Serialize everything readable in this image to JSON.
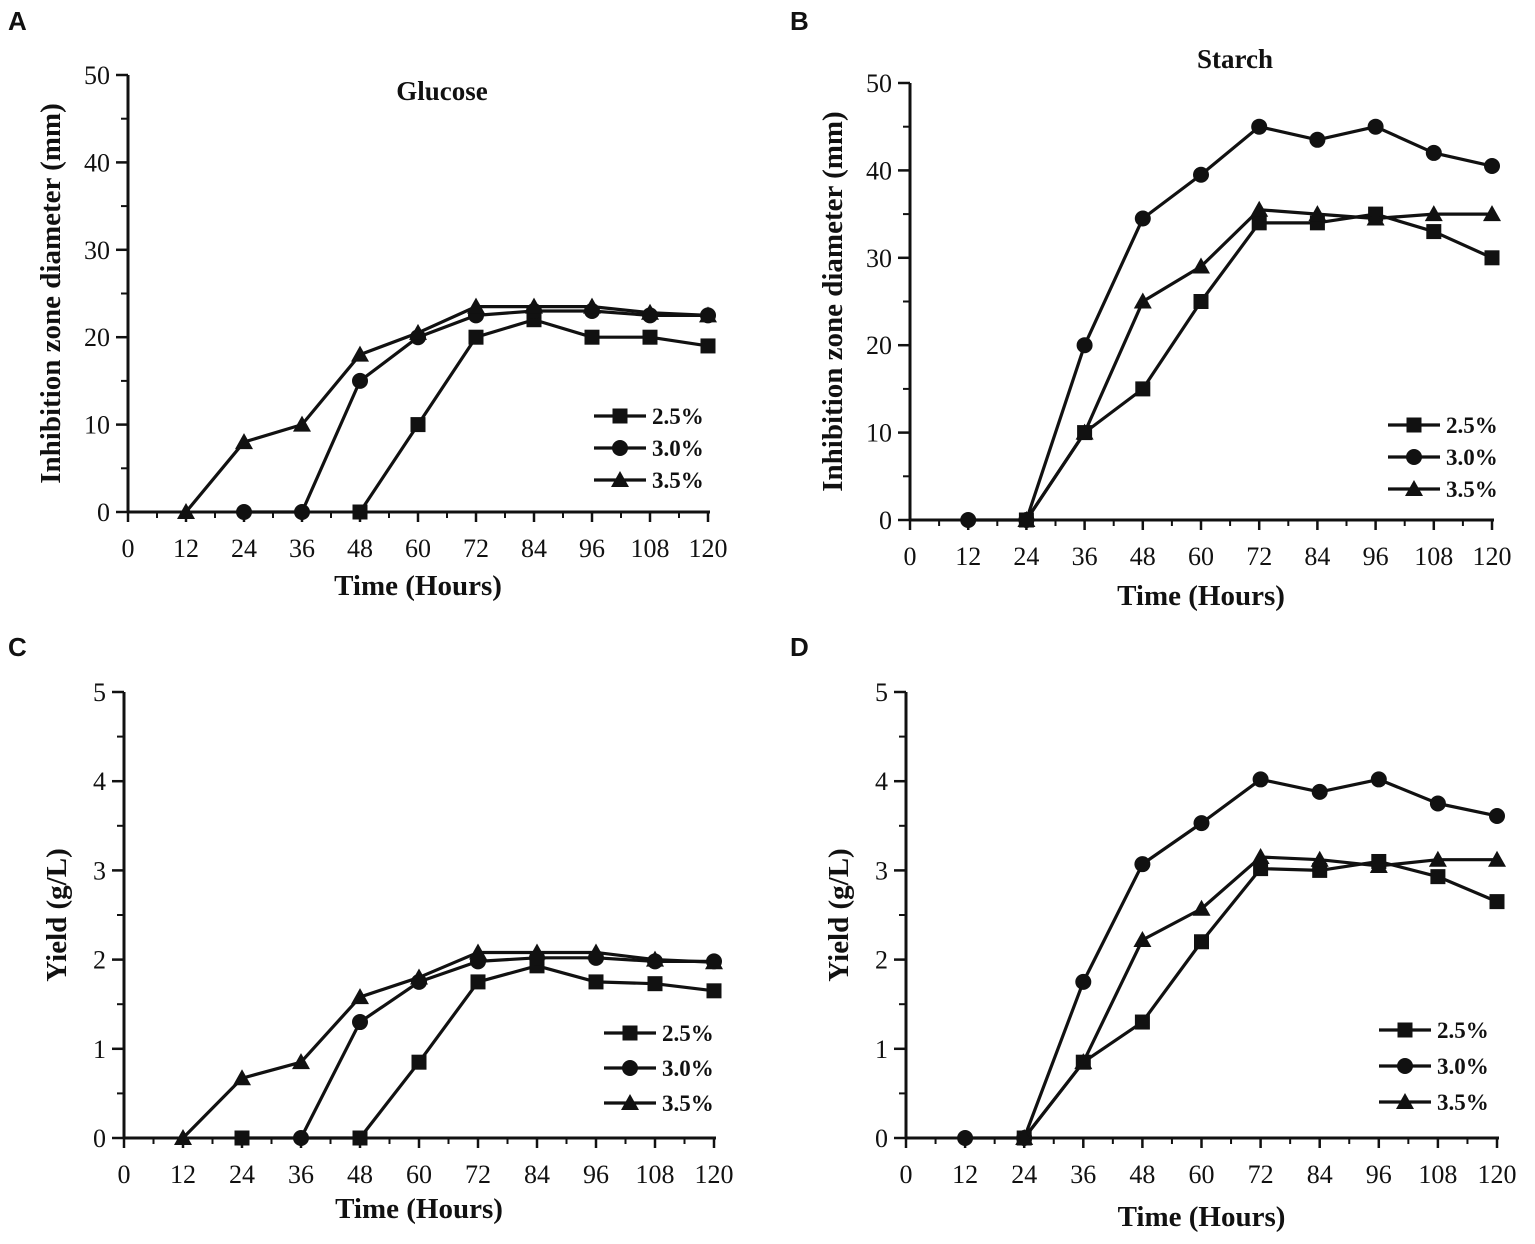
{
  "colors": {
    "ink": "#111111",
    "background": "#ffffff"
  },
  "chart_data": [
    {
      "panel": "A",
      "type": "line",
      "title": "Glucose",
      "xlabel": "Time (Hours)",
      "ylabel": "Inhibition zone diameter (mm)",
      "x": [
        0,
        12,
        24,
        36,
        48,
        60,
        72,
        84,
        96,
        108,
        120
      ],
      "xticks": [
        "0",
        "12",
        "24",
        "36",
        "48",
        "60",
        "72",
        "84",
        "96",
        "108",
        "120"
      ],
      "yticks": [
        "0",
        "10",
        "20",
        "30",
        "40",
        "50"
      ],
      "xlim": [
        0,
        120
      ],
      "ylim": [
        0,
        50
      ],
      "grid": false,
      "legend_position": "bottom-right",
      "series": [
        {
          "name": "2.5%",
          "marker": "square",
          "x": [
            48,
            60,
            72,
            84,
            96,
            108,
            120
          ],
          "values": [
            0,
            10,
            20,
            22,
            20,
            20,
            19
          ]
        },
        {
          "name": "3.0%",
          "marker": "circle",
          "x": [
            24,
            36,
            48,
            60,
            72,
            84,
            96,
            108,
            120
          ],
          "values": [
            0,
            0,
            15,
            20,
            22.5,
            23,
            23,
            22.5,
            22.5
          ]
        },
        {
          "name": "3.5%",
          "marker": "triangle",
          "x": [
            12,
            24,
            36,
            48,
            60,
            72,
            84,
            96,
            108,
            120
          ],
          "values": [
            0,
            8,
            10,
            18,
            20.5,
            23.5,
            23.5,
            23.5,
            22.8,
            22.5
          ]
        }
      ]
    },
    {
      "panel": "B",
      "type": "line",
      "title": "Starch",
      "xlabel": "Time (Hours)",
      "ylabel": "Inhibition zone diameter (mm)",
      "x": [
        0,
        12,
        24,
        36,
        48,
        60,
        72,
        84,
        96,
        108,
        120
      ],
      "xticks": [
        "0",
        "12",
        "24",
        "36",
        "48",
        "60",
        "72",
        "84",
        "96",
        "108",
        "120"
      ],
      "yticks": [
        "0",
        "10",
        "20",
        "30",
        "40",
        "50"
      ],
      "xlim": [
        0,
        120
      ],
      "ylim": [
        0,
        50
      ],
      "grid": false,
      "legend_position": "bottom-right",
      "series": [
        {
          "name": "2.5%",
          "marker": "square",
          "x": [
            24,
            36,
            48,
            60,
            72,
            84,
            96,
            108,
            120
          ],
          "values": [
            0,
            10,
            15,
            25,
            34,
            34,
            35,
            33,
            30
          ]
        },
        {
          "name": "3.0%",
          "marker": "circle",
          "x": [
            12,
            24,
            36,
            48,
            60,
            72,
            84,
            96,
            108,
            120
          ],
          "values": [
            0,
            0,
            20,
            34.5,
            39.5,
            45,
            43.5,
            45,
            42,
            40.5
          ]
        },
        {
          "name": "3.5%",
          "marker": "triangle",
          "x": [
            24,
            36,
            48,
            60,
            72,
            84,
            96,
            108,
            120
          ],
          "values": [
            0,
            10,
            25,
            29,
            35.5,
            35,
            34.5,
            35,
            35
          ]
        }
      ]
    },
    {
      "panel": "C",
      "type": "line",
      "title": "",
      "xlabel": "Time (Hours)",
      "ylabel": "Yield (g/L)",
      "x": [
        0,
        12,
        24,
        36,
        48,
        60,
        72,
        84,
        96,
        108,
        120
      ],
      "xticks": [
        "0",
        "12",
        "24",
        "36",
        "48",
        "60",
        "72",
        "84",
        "96",
        "108",
        "120"
      ],
      "yticks": [
        "0",
        "1",
        "2",
        "3",
        "4",
        "5"
      ],
      "xlim": [
        0,
        120
      ],
      "ylim": [
        0,
        5
      ],
      "grid": false,
      "legend_position": "bottom-right",
      "series": [
        {
          "name": "2.5%",
          "marker": "square",
          "x": [
            24,
            48,
            60,
            72,
            84,
            96,
            108,
            120
          ],
          "values": [
            0,
            0,
            0.85,
            1.75,
            1.93,
            1.75,
            1.73,
            1.65
          ]
        },
        {
          "name": "3.0%",
          "marker": "circle",
          "x": [
            36,
            48,
            60,
            72,
            84,
            96,
            108,
            120
          ],
          "values": [
            0,
            1.3,
            1.75,
            1.98,
            2.02,
            2.02,
            1.98,
            1.98
          ]
        },
        {
          "name": "3.5%",
          "marker": "triangle",
          "x": [
            12,
            24,
            36,
            48,
            60,
            72,
            84,
            96,
            108,
            120
          ],
          "values": [
            0,
            0.67,
            0.85,
            1.58,
            1.8,
            2.08,
            2.08,
            2.08,
            2.0,
            1.97
          ]
        }
      ]
    },
    {
      "panel": "D",
      "type": "line",
      "title": "",
      "xlabel": "Time (Hours)",
      "ylabel": "Yield (g/L)",
      "x": [
        0,
        12,
        24,
        36,
        48,
        60,
        72,
        84,
        96,
        108,
        120
      ],
      "xticks": [
        "0",
        "12",
        "24",
        "36",
        "48",
        "60",
        "72",
        "84",
        "96",
        "108",
        "120"
      ],
      "yticks": [
        "0",
        "1",
        "2",
        "3",
        "4",
        "5"
      ],
      "xlim": [
        0,
        120
      ],
      "ylim": [
        0,
        5
      ],
      "grid": false,
      "legend_position": "bottom-right",
      "series": [
        {
          "name": "2.5%",
          "marker": "square",
          "x": [
            24,
            36,
            48,
            60,
            72,
            84,
            96,
            108,
            120
          ],
          "values": [
            0,
            0.85,
            1.3,
            2.2,
            3.02,
            3.0,
            3.1,
            2.93,
            2.65
          ]
        },
        {
          "name": "3.0%",
          "marker": "circle",
          "x": [
            12,
            24,
            36,
            48,
            60,
            72,
            84,
            96,
            108,
            120
          ],
          "values": [
            0,
            0,
            1.75,
            3.07,
            3.53,
            4.02,
            3.88,
            4.02,
            3.75,
            3.61
          ]
        },
        {
          "name": "3.5%",
          "marker": "triangle",
          "x": [
            24,
            36,
            48,
            60,
            72,
            84,
            96,
            108,
            120
          ],
          "values": [
            0,
            0.85,
            2.22,
            2.57,
            3.15,
            3.12,
            3.05,
            3.12,
            3.12
          ]
        }
      ]
    }
  ]
}
